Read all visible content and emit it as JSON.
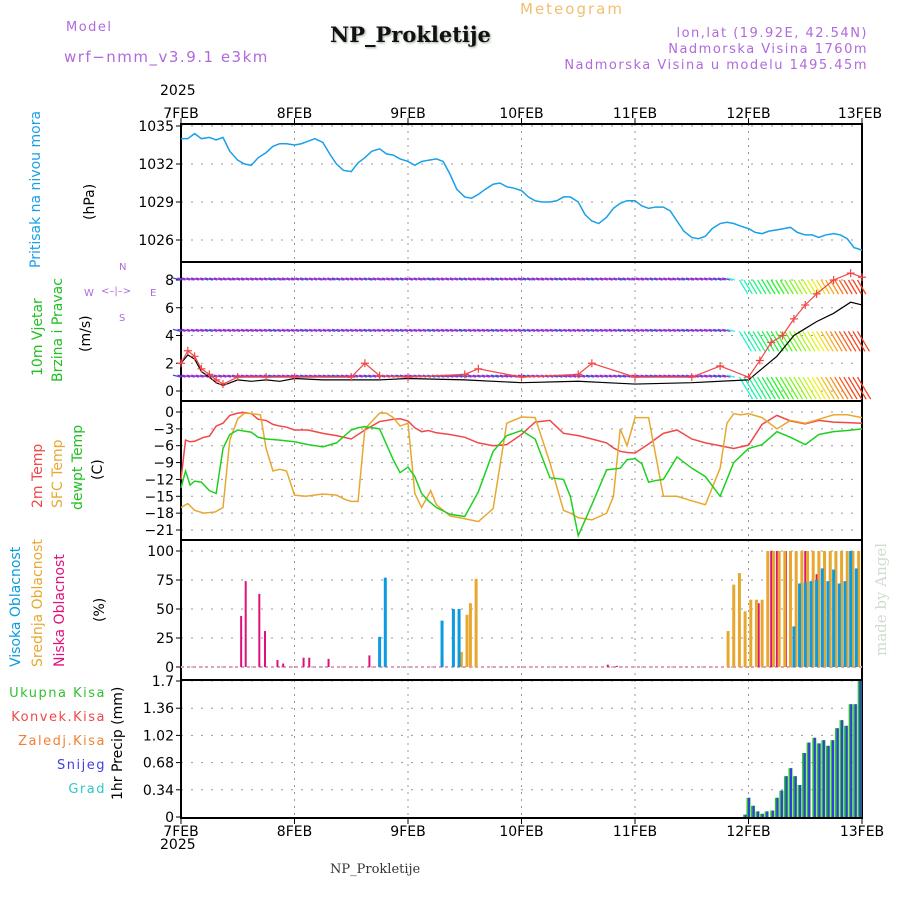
{
  "header": {
    "model_label": "Model",
    "model_name": "wrf−nmm_v3.9.1  e3km",
    "meteogram_label": "Meteogram",
    "station_title": "NP_Prokletije",
    "lonlat": "lon,lat (19.92E, 42.54N)",
    "elevation": "Nadmorska Visina 1760m",
    "model_elevation": "Nadmorska Visina u modelu 1495.45m",
    "year_top": "2025",
    "year_bottom": "2025",
    "footer_station": "NP_Prokletije",
    "credit": "made by Angel"
  },
  "compass": {
    "n": "N",
    "s": "S",
    "w": "W",
    "e": "E"
  },
  "colors": {
    "pressure": "#1aa0e8",
    "t2m": "#f04848",
    "tsfc": "#e8a830",
    "tdew": "#20d020",
    "cloud_high": "#0a9be0",
    "cloud_mid": "#e8a830",
    "cloud_low": "#e0107a",
    "precip_total": "#30c030",
    "precip_snow": "#3040e0"
  },
  "chart_data": [
    {
      "type": "line",
      "name": "pressure",
      "title": "Pritisak na nivou mora",
      "ylabel": "(hPa)",
      "ylim": [
        1024,
        1035.2
      ],
      "yticks": [
        "1035",
        "1032",
        "1029",
        "1026"
      ],
      "ytick_values": [
        1035,
        1032,
        1029,
        1026
      ],
      "xlim_days": [
        0,
        6
      ],
      "x_days": [
        0,
        0.06,
        0.12,
        0.18,
        0.25,
        0.31,
        0.37,
        0.43,
        0.5,
        0.56,
        0.62,
        0.68,
        0.75,
        0.81,
        0.87,
        0.93,
        1.0,
        1.06,
        1.12,
        1.18,
        1.25,
        1.31,
        1.37,
        1.43,
        1.5,
        1.56,
        1.62,
        1.68,
        1.75,
        1.81,
        1.87,
        1.93,
        2.0,
        2.06,
        2.12,
        2.18,
        2.25,
        2.31,
        2.37,
        2.43,
        2.5,
        2.56,
        2.62,
        2.68,
        2.75,
        2.81,
        2.87,
        2.93,
        3.0,
        3.06,
        3.12,
        3.18,
        3.25,
        3.31,
        3.37,
        3.43,
        3.5,
        3.56,
        3.62,
        3.68,
        3.75,
        3.81,
        3.87,
        3.93,
        4.0,
        4.06,
        4.12,
        4.18,
        4.25,
        4.31,
        4.37,
        4.43,
        4.5,
        4.56,
        4.62,
        4.68,
        4.75,
        4.81,
        4.87,
        4.93,
        5.0,
        5.06,
        5.12,
        5.18,
        5.25,
        5.31,
        5.37,
        5.43,
        5.5,
        5.56,
        5.62,
        5.68,
        5.75,
        5.81,
        5.87,
        5.93,
        6.0
      ],
      "values": [
        1034.0,
        1034.0,
        1034.4,
        1034.0,
        1034.1,
        1033.9,
        1034.1,
        1033.0,
        1032.3,
        1032.0,
        1031.9,
        1032.5,
        1032.9,
        1033.4,
        1033.6,
        1033.6,
        1033.5,
        1033.6,
        1033.8,
        1034.0,
        1033.7,
        1032.8,
        1032.0,
        1031.5,
        1031.4,
        1032.1,
        1032.5,
        1033.0,
        1033.2,
        1032.8,
        1032.7,
        1032.4,
        1032.2,
        1031.9,
        1032.2,
        1032.3,
        1032.4,
        1032.2,
        1031.2,
        1030.0,
        1029.4,
        1029.3,
        1029.6,
        1030.0,
        1030.4,
        1030.5,
        1030.2,
        1030.1,
        1029.9,
        1029.4,
        1029.1,
        1029.0,
        1029.0,
        1029.1,
        1029.4,
        1029.4,
        1029.0,
        1028.0,
        1027.5,
        1027.3,
        1027.8,
        1028.5,
        1028.9,
        1029.1,
        1029.1,
        1028.7,
        1028.5,
        1028.6,
        1028.6,
        1028.3,
        1027.5,
        1026.7,
        1026.2,
        1026.1,
        1026.3,
        1026.9,
        1027.3,
        1027.4,
        1027.3,
        1027.1,
        1026.9,
        1026.6,
        1026.5,
        1026.7,
        1026.8,
        1026.9,
        1027.0,
        1026.6,
        1026.4,
        1026.4,
        1026.2,
        1026.4,
        1026.5,
        1026.4,
        1026.1,
        1025.4,
        1025.2
      ]
    },
    {
      "type": "line",
      "name": "wind",
      "title": "10m Vjetar Brzina i Pravac",
      "ylabel": "(m/s)",
      "ylim": [
        -0.5,
        9.2
      ],
      "yticks": [
        "8",
        "6",
        "4",
        "2",
        "0"
      ],
      "ytick_values": [
        8,
        6,
        4,
        2,
        0
      ],
      "series": [
        {
          "name": "wind_speed",
          "color": "#000000",
          "x_days": [
            0,
            0.06,
            0.12,
            0.18,
            0.25,
            0.31,
            0.37,
            0.5,
            0.62,
            0.75,
            0.87,
            1.0,
            1.25,
            1.5,
            1.75,
            2.0,
            2.5,
            3.0,
            3.5,
            4.0,
            4.5,
            5.0,
            5.25,
            5.4,
            5.5,
            5.6,
            5.75,
            5.9,
            6.0
          ],
          "values": [
            2.0,
            2.6,
            2.3,
            1.4,
            1.0,
            0.6,
            0.4,
            0.8,
            0.7,
            0.8,
            0.7,
            0.9,
            0.8,
            0.8,
            0.8,
            0.9,
            0.8,
            0.6,
            0.7,
            0.5,
            0.6,
            0.8,
            2.5,
            4.0,
            4.5,
            5.0,
            5.6,
            6.4,
            6.2
          ]
        },
        {
          "name": "wind_gust",
          "color": "#f04848",
          "x_days": [
            0,
            0.06,
            0.12,
            0.18,
            0.25,
            0.31,
            0.37,
            0.5,
            0.75,
            1.0,
            1.5,
            1.62,
            1.75,
            2.0,
            2.5,
            2.62,
            3.0,
            3.5,
            3.62,
            4.0,
            4.5,
            4.75,
            5.0,
            5.1,
            5.2,
            5.3,
            5.4,
            5.5,
            5.6,
            5.75,
            5.9,
            6.0
          ],
          "values": [
            2.0,
            2.9,
            2.5,
            1.6,
            1.2,
            0.8,
            0.5,
            1.0,
            1.0,
            1.0,
            1.0,
            2.0,
            1.1,
            1.0,
            1.2,
            1.6,
            1.0,
            1.2,
            2.0,
            1.0,
            1.0,
            1.8,
            1.0,
            2.2,
            3.5,
            4.0,
            5.2,
            6.2,
            7.0,
            8.0,
            8.5,
            8.2
          ]
        }
      ],
      "barb_levels": [
        8,
        4.3,
        1.0
      ]
    },
    {
      "type": "line",
      "name": "temperature",
      "titles": [
        "2m Temp",
        "SFC Temp",
        "dewpt Temp"
      ],
      "ylabel": "(C)",
      "ylim": [
        -22.5,
        1
      ],
      "yticks": [
        "0",
        "−3",
        "−6",
        "−9",
        "−12",
        "−15",
        "−18",
        "−21"
      ],
      "ytick_values": [
        0,
        -3,
        -6,
        -9,
        -12,
        -15,
        -18,
        -21
      ],
      "series": [
        {
          "name": "2m Temp",
          "color": "#f04848",
          "x_days": [
            0,
            0.04,
            0.08,
            0.12,
            0.2,
            0.25,
            0.31,
            0.37,
            0.43,
            0.5,
            0.56,
            0.62,
            0.68,
            0.75,
            0.81,
            0.87,
            0.93,
            1.0,
            1.12,
            1.25,
            1.37,
            1.5,
            1.62,
            1.75,
            1.81,
            1.87,
            1.93,
            2.0,
            2.06,
            2.12,
            2.18,
            2.25,
            2.37,
            2.5,
            2.62,
            2.75,
            2.87,
            3.0,
            3.12,
            3.25,
            3.37,
            3.5,
            3.62,
            3.75,
            3.81,
            3.87,
            3.93,
            4.0,
            4.12,
            4.25,
            4.37,
            4.5,
            4.62,
            4.75,
            4.87,
            5.0,
            5.12,
            5.25,
            5.37,
            5.5,
            5.62,
            5.75,
            5.87,
            6.0
          ],
          "values": [
            -12,
            -5,
            -5.3,
            -5.2,
            -4.5,
            -4.3,
            -2.5,
            -2.0,
            -0.6,
            -0.2,
            -0.1,
            -0.3,
            -1.3,
            -1.5,
            -2.2,
            -2.5,
            -2.7,
            -3.2,
            -3.2,
            -3.8,
            -4.2,
            -4.8,
            -3.2,
            -1.7,
            -1.5,
            -1.3,
            -1.2,
            -1.6,
            -2.8,
            -3.5,
            -3.3,
            -3.7,
            -4.0,
            -4.5,
            -5.5,
            -6.0,
            -5.8,
            -4.0,
            -1.8,
            -1.5,
            -3.8,
            -4.2,
            -4.8,
            -5.5,
            -6.4,
            -7.0,
            -7.2,
            -7.3,
            -5.7,
            -3.8,
            -3.2,
            -4.8,
            -5.5,
            -6.0,
            -6.5,
            -5.9,
            -2.2,
            -0.6,
            -1.6,
            -2.1,
            -1.5,
            -1.8,
            -1.9,
            -2.0
          ]
        },
        {
          "name": "SFC Temp",
          "color": "#e8a830",
          "x_days": [
            0,
            0.06,
            0.12,
            0.2,
            0.3,
            0.37,
            0.43,
            0.5,
            0.56,
            0.62,
            0.7,
            0.75,
            0.81,
            0.87,
            0.93,
            1.0,
            1.1,
            1.25,
            1.37,
            1.45,
            1.5,
            1.56,
            1.62,
            1.75,
            1.81,
            1.87,
            1.93,
            2.0,
            2.06,
            2.12,
            2.2,
            2.25,
            2.37,
            2.5,
            2.62,
            2.75,
            2.87,
            3.0,
            3.12,
            3.25,
            3.37,
            3.43,
            3.5,
            3.62,
            3.75,
            3.81,
            3.87,
            3.93,
            4.0,
            4.12,
            4.25,
            4.37,
            4.5,
            4.62,
            4.75,
            4.81,
            4.87,
            4.93,
            5.0,
            5.12,
            5.25,
            5.37,
            5.5,
            5.62,
            5.75,
            5.87,
            6.0
          ],
          "values": [
            -17,
            -16.3,
            -17.5,
            -18.0,
            -17.8,
            -17.0,
            -5.0,
            -1.2,
            -0.2,
            -0.3,
            -0.5,
            -6.5,
            -10.5,
            -10.2,
            -10.5,
            -14.8,
            -15.0,
            -14.6,
            -14.8,
            -15.6,
            -15.9,
            -15.9,
            -3.0,
            -0.2,
            -0.2,
            -1.0,
            -2.5,
            -2.0,
            -14.5,
            -17.0,
            -14.0,
            -16.5,
            -18.5,
            -19.0,
            -19.5,
            -17.2,
            -2.0,
            -0.9,
            -1.0,
            -9.0,
            -17.5,
            -18.0,
            -18.8,
            -19.2,
            -18.0,
            -15.0,
            -3.0,
            -6.0,
            -1.0,
            -1.0,
            -15.0,
            -15.0,
            -15.8,
            -16.5,
            -10.0,
            -2.0,
            -0.3,
            -0.5,
            -0.3,
            -1.0,
            -3.0,
            -1.5,
            -2.0,
            -1.3,
            -0.5,
            -0.5,
            -1.0
          ]
        },
        {
          "name": "dewpt Temp",
          "color": "#20d020",
          "x_days": [
            0,
            0.04,
            0.08,
            0.12,
            0.18,
            0.25,
            0.31,
            0.37,
            0.43,
            0.5,
            0.56,
            0.62,
            0.68,
            0.75,
            0.87,
            1.0,
            1.12,
            1.25,
            1.37,
            1.5,
            1.56,
            1.62,
            1.75,
            1.87,
            1.93,
            2.0,
            2.06,
            2.12,
            2.18,
            2.25,
            2.37,
            2.5,
            2.62,
            2.75,
            2.87,
            3.0,
            3.12,
            3.25,
            3.37,
            3.43,
            3.5,
            3.62,
            3.75,
            3.87,
            3.93,
            4.0,
            4.06,
            4.12,
            4.18,
            4.25,
            4.37,
            4.5,
            4.62,
            4.75,
            4.87,
            5.0,
            5.12,
            5.25,
            5.37,
            5.5,
            5.62,
            5.75,
            5.87,
            6.0
          ],
          "values": [
            -13.5,
            -10.5,
            -13.0,
            -12.3,
            -12.5,
            -14.0,
            -14.5,
            -6.5,
            -4.0,
            -3.2,
            -3.4,
            -3.6,
            -4.5,
            -4.8,
            -5.0,
            -5.3,
            -5.8,
            -6.2,
            -5.5,
            -3.2,
            -2.8,
            -2.6,
            -3.0,
            -8.5,
            -10.8,
            -9.8,
            -11.5,
            -14.5,
            -15.8,
            -17.0,
            -18.2,
            -18.6,
            -14.2,
            -7.0,
            -4.2,
            -3.3,
            -4.8,
            -11.7,
            -12.0,
            -15.0,
            -22.0,
            -16.5,
            -10.3,
            -10.0,
            -8.5,
            -8.3,
            -9.2,
            -12.5,
            -12.2,
            -12.0,
            -8.0,
            -10.0,
            -11.5,
            -15.0,
            -9.0,
            -6.5,
            -5.8,
            -3.5,
            -4.5,
            -5.8,
            -4.0,
            -3.5,
            -3.3,
            -3.0,
            -2.7
          ]
        }
      ]
    },
    {
      "type": "bar",
      "name": "cloud_cover",
      "titles": [
        "Visoka Oblacnost",
        "Srednja Oblacnost",
        "Niska Oblacnost"
      ],
      "ylabel": "(%)",
      "ylim": [
        0,
        100
      ],
      "yticks": [
        "100",
        "75",
        "50",
        "25",
        "0"
      ],
      "ytick_values": [
        100,
        75,
        50,
        25,
        0
      ],
      "series": [
        {
          "name": "Niska Oblacnost",
          "color": "#e0107a",
          "x_days": [
            0.53,
            0.57,
            0.69,
            0.74,
            0.85,
            0.9,
            1.08,
            1.13,
            1.3,
            1.66,
            3.76,
            3.84,
            5.09,
            5.2,
            5.25,
            5.33,
            5.5,
            5.6,
            5.7,
            5.8,
            5.9
          ],
          "values": [
            44,
            74,
            63,
            31,
            6,
            3,
            8,
            8,
            7,
            10,
            2,
            1,
            55,
            100,
            100,
            100,
            100,
            80,
            38,
            55,
            98
          ]
        },
        {
          "name": "Srednja Oblacnost",
          "color": "#e8a830",
          "x_days": [
            2.3,
            2.47,
            2.52,
            2.55,
            2.6,
            4.82,
            4.87,
            4.92,
            4.97,
            5.02,
            5.07,
            5.12,
            5.17,
            5.22,
            5.27,
            5.32,
            5.37,
            5.42,
            5.47,
            5.52,
            5.57,
            5.62,
            5.67,
            5.72,
            5.77,
            5.82,
            5.87,
            5.92,
            5.97
          ],
          "values": [
            11,
            13,
            45,
            55,
            76,
            31,
            71,
            81,
            48,
            58,
            58,
            58,
            100,
            100,
            100,
            100,
            100,
            100,
            100,
            100,
            100,
            100,
            100,
            100,
            100,
            100,
            100,
            100,
            100
          ]
        },
        {
          "name": "Visoka Oblacnost",
          "color": "#0a9be0",
          "x_days": [
            1.75,
            1.8,
            2.3,
            2.4,
            2.45,
            5.4,
            5.45,
            5.5,
            5.55,
            5.6,
            5.65,
            5.7,
            5.75,
            5.8,
            5.85,
            5.9,
            5.95
          ],
          "values": [
            26,
            77,
            40,
            50,
            50,
            35,
            72,
            73,
            74,
            75,
            85,
            74,
            84,
            72,
            74,
            100,
            85
          ]
        }
      ]
    },
    {
      "type": "bar",
      "name": "precipitation",
      "ylabel": "1hr Precip (mm)",
      "legend": [
        "Ukupna Kisa",
        "Konvek.Kisa",
        "Zaledj.Kisa",
        "Snijeg",
        "Grad"
      ],
      "legend_colors": [
        "#30c030",
        "#f04848",
        "#f08030",
        "#4040e0",
        "#30c8c8"
      ],
      "ylim": [
        0,
        1.7
      ],
      "yticks": [
        "1.7",
        "1.36",
        "1.02",
        "0.68",
        "0.34",
        "0"
      ],
      "ytick_values": [
        1.7,
        1.36,
        1.02,
        0.68,
        0.34,
        0
      ],
      "x_days": [
        4.97,
        5.0,
        5.04,
        5.08,
        5.12,
        5.16,
        5.21,
        5.25,
        5.29,
        5.33,
        5.37,
        5.41,
        5.45,
        5.49,
        5.53,
        5.58,
        5.62,
        5.66,
        5.7,
        5.74,
        5.78,
        5.82,
        5.86,
        5.9,
        5.94,
        5.98
      ],
      "values": [
        0.03,
        0.24,
        0.14,
        0.07,
        0.04,
        0.07,
        0.08,
        0.24,
        0.33,
        0.51,
        0.61,
        0.51,
        0.4,
        0.8,
        0.93,
        0.99,
        0.92,
        0.96,
        0.89,
        0.96,
        1.11,
        1.21,
        1.14,
        1.41,
        1.41,
        1.7
      ]
    }
  ],
  "x_axis": {
    "labels": [
      "7FEB",
      "8FEB",
      "9FEB",
      "10FEB",
      "11FEB",
      "12FEB",
      "13FEB"
    ]
  }
}
